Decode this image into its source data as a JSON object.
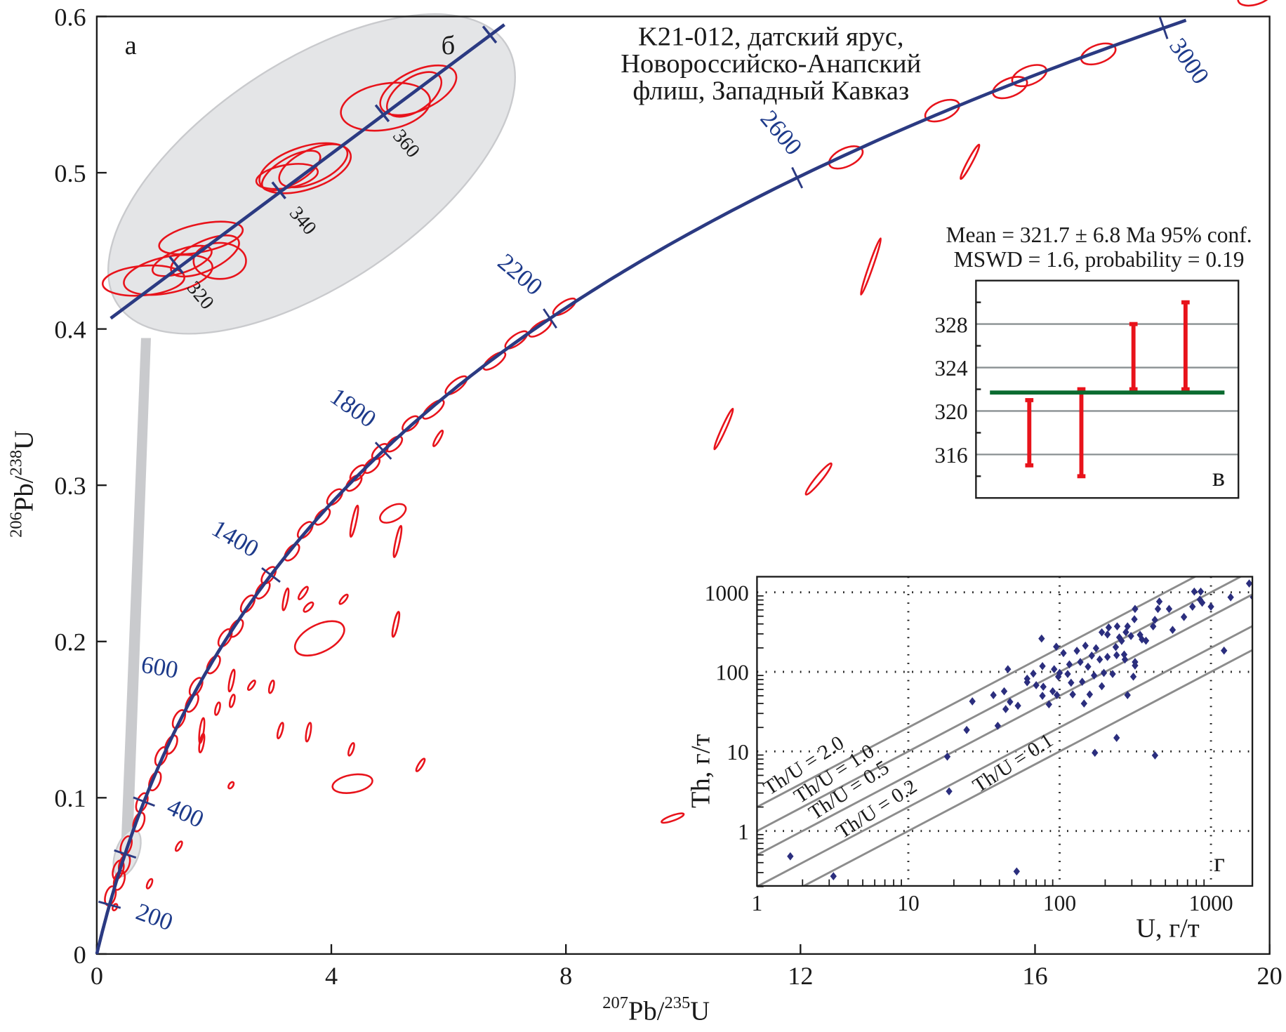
{
  "chart_data": [
    {
      "id": "a",
      "type": "scatter",
      "subtype": "concordia-diagram",
      "panel_label": "а",
      "title_lines": [
        "K21-012, датский ярус,",
        "Новороссийско-Анапский",
        "флиш, Западный Кавказ"
      ],
      "xlabel": {
        "sup1": "207",
        "base1": "Pb/",
        "sup2": "235",
        "base2": "U"
      },
      "ylabel": {
        "sup1": "206",
        "base1": "Pb/",
        "sup2": "238",
        "base2": "U"
      },
      "xlim": [
        0,
        20
      ],
      "ylim": [
        0,
        0.6
      ],
      "xticks": [
        "0",
        "4",
        "8",
        "12",
        "16",
        "20"
      ],
      "yticks": [
        "0",
        "0.1",
        "0.2",
        "0.3",
        "0.4",
        "0.5",
        "0.6"
      ],
      "concordia_age_labels_ma": [
        "200",
        "400",
        "600",
        "1400",
        "1800",
        "2200",
        "2600",
        "3000"
      ],
      "concordia_color": "#2b3a82",
      "ellipse_color": "#e8131b",
      "concordant_ellipse_ages_ma": [
        240,
        300,
        330,
        370,
        430,
        520,
        600,
        680,
        760,
        820,
        900,
        960,
        1020,
        1100,
        1180,
        1230,
        1300,
        1350,
        1400,
        1480,
        1540,
        1600,
        1650,
        1700,
        1730,
        1760,
        1790,
        1830,
        1880,
        1930,
        2000,
        2080,
        2130,
        2180,
        2230,
        2660,
        2780,
        2850,
        2870,
        2940,
        3080
      ],
      "discordant_ellipses": [
        {
          "x": 5.05,
          "y": 0.282,
          "ex": 0.22,
          "ey": 0.006,
          "rho": 0.5
        },
        {
          "x": 5.13,
          "y": 0.264,
          "ex": 0.06,
          "ey": 0.01,
          "rho": 0.95
        },
        {
          "x": 4.39,
          "y": 0.277,
          "ex": 0.06,
          "ey": 0.01,
          "rho": 0.95
        },
        {
          "x": 3.52,
          "y": 0.231,
          "ex": 0.08,
          "ey": 0.004,
          "rho": 0.8
        },
        {
          "x": 3.61,
          "y": 0.222,
          "ex": 0.08,
          "ey": 0.003,
          "rho": 0.7
        },
        {
          "x": 4.21,
          "y": 0.227,
          "ex": 0.07,
          "ey": 0.003,
          "rho": 0.8
        },
        {
          "x": 3.22,
          "y": 0.227,
          "ex": 0.04,
          "ey": 0.007,
          "rho": 0.95
        },
        {
          "x": 3.8,
          "y": 0.202,
          "ex": 0.42,
          "ey": 0.011,
          "rho": 0.5
        },
        {
          "x": 5.1,
          "y": 0.211,
          "ex": 0.05,
          "ey": 0.008,
          "rho": 0.95
        },
        {
          "x": 5.82,
          "y": 0.33,
          "ex": 0.08,
          "ey": 0.005,
          "rho": 0.9
        },
        {
          "x": 2.64,
          "y": 0.172,
          "ex": 0.06,
          "ey": 0.003,
          "rho": 0.8
        },
        {
          "x": 2.98,
          "y": 0.171,
          "ex": 0.03,
          "ey": 0.004,
          "rho": 0.9
        },
        {
          "x": 2.3,
          "y": 0.175,
          "ex": 0.04,
          "ey": 0.007,
          "rho": 0.95
        },
        {
          "x": 2.31,
          "y": 0.162,
          "ex": 0.03,
          "ey": 0.004,
          "rho": 0.9
        },
        {
          "x": 2.06,
          "y": 0.157,
          "ex": 0.03,
          "ey": 0.004,
          "rho": 0.9
        },
        {
          "x": 1.79,
          "y": 0.143,
          "ex": 0.03,
          "ey": 0.008,
          "rho": 0.95
        },
        {
          "x": 1.79,
          "y": 0.135,
          "ex": 0.03,
          "ey": 0.006,
          "rho": 0.95
        },
        {
          "x": 3.13,
          "y": 0.143,
          "ex": 0.04,
          "ey": 0.005,
          "rho": 0.9
        },
        {
          "x": 3.61,
          "y": 0.142,
          "ex": 0.03,
          "ey": 0.006,
          "rho": 0.95
        },
        {
          "x": 4.34,
          "y": 0.131,
          "ex": 0.04,
          "ey": 0.004,
          "rho": 0.9
        },
        {
          "x": 5.52,
          "y": 0.121,
          "ex": 0.07,
          "ey": 0.004,
          "rho": 0.9
        },
        {
          "x": 4.36,
          "y": 0.109,
          "ex": 0.34,
          "ey": 0.006,
          "rho": 0.3
        },
        {
          "x": 2.29,
          "y": 0.108,
          "ex": 0.04,
          "ey": 0.002,
          "rho": 0.7
        },
        {
          "x": 1.4,
          "y": 0.069,
          "ex": 0.05,
          "ey": 0.003,
          "rho": 0.85
        },
        {
          "x": 0.9,
          "y": 0.045,
          "ex": 0.04,
          "ey": 0.003,
          "rho": 0.85
        },
        {
          "x": 0.31,
          "y": 0.03,
          "ex": 0.03,
          "ey": 0.002,
          "rho": 0.8
        },
        {
          "x": 9.82,
          "y": 0.087,
          "ex": 0.19,
          "ey": 0.003,
          "rho": 0.8
        },
        {
          "x": 12.31,
          "y": 0.304,
          "ex": 0.22,
          "ey": 0.01,
          "rho": 0.95
        },
        {
          "x": 10.69,
          "y": 0.336,
          "ex": 0.16,
          "ey": 0.013,
          "rho": 0.97
        },
        {
          "x": 13.2,
          "y": 0.44,
          "ex": 0.17,
          "ey": 0.018,
          "rho": 0.98
        },
        {
          "x": 14.89,
          "y": 0.507,
          "ex": 0.16,
          "ey": 0.011,
          "rho": 0.96
        }
      ]
    },
    {
      "id": "b",
      "type": "scatter",
      "subtype": "concordia-enlargement",
      "panel_label": "б",
      "age_labels_ma": [
        "320",
        "340",
        "360"
      ]
    },
    {
      "id": "v",
      "type": "errorbar",
      "panel_label": "в",
      "annotation_lines": [
        "Mean = 321.7 ± 6.8 Ma 95% conf.",
        "MSWD = 1.6, probability = 0.19"
      ],
      "mean": 321.7,
      "ylim": [
        312,
        332
      ],
      "yticks": [
        "316",
        "320",
        "324",
        "328"
      ],
      "mean_color": "#0b6b30",
      "bar_color": "#e8131b",
      "bars": [
        {
          "low": 315,
          "high": 321
        },
        {
          "low": 314,
          "high": 322
        },
        {
          "low": 322,
          "high": 328
        },
        {
          "low": 322,
          "high": 330
        }
      ]
    },
    {
      "id": "g",
      "type": "scatter",
      "panel_label": "г",
      "xscale": "log",
      "yscale": "log",
      "xlim": [
        1,
        1870
      ],
      "ylim": [
        0.2,
        1560
      ],
      "xlabel": "U, г/т",
      "ylabel": "Th, г/т",
      "xticks": [
        "1",
        "10",
        "100",
        "1000"
      ],
      "yticks": [
        "1",
        "10",
        "100",
        "1000"
      ],
      "point_color": "#2b2e7e",
      "ratio_lines": [
        {
          "ratio": 2.0,
          "label": "Th/U = 2.0"
        },
        {
          "ratio": 1.0,
          "label": "Th/U = 1.0"
        },
        {
          "ratio": 0.5,
          "label": "Th/U = 0.5"
        },
        {
          "ratio": 0.2,
          "label": "Th/U = 0.2"
        },
        {
          "ratio": 0.1,
          "label": "Th/U = 0.1"
        }
      ],
      "points": [
        [
          1.66,
          0.48
        ],
        [
          3.2,
          0.27
        ],
        [
          52,
          0.31
        ],
        [
          18.1,
          8.6
        ],
        [
          18.6,
          3.15
        ],
        [
          24.3,
          18.6
        ],
        [
          26.5,
          42.6
        ],
        [
          39,
          21
        ],
        [
          36.5,
          51
        ],
        [
          43,
          57
        ],
        [
          44,
          34
        ],
        [
          47,
          42
        ],
        [
          53,
          37.5
        ],
        [
          45.5,
          108
        ],
        [
          61,
          82
        ],
        [
          61,
          74
        ],
        [
          67,
          95
        ],
        [
          70,
          68
        ],
        [
          76,
          262
        ],
        [
          77,
          118
        ],
        [
          78,
          65
        ],
        [
          77,
          50
        ],
        [
          85,
          39
        ],
        [
          90,
          57
        ],
        [
          95,
          207
        ],
        [
          92,
          108
        ],
        [
          96,
          51
        ],
        [
          98,
          87
        ],
        [
          100,
          97
        ],
        [
          106,
          172
        ],
        [
          113,
          94
        ],
        [
          116,
          124
        ],
        [
          119,
          73
        ],
        [
          122,
          52
        ],
        [
          130,
          184
        ],
        [
          137,
          133
        ],
        [
          141,
          75
        ],
        [
          145,
          40
        ],
        [
          148,
          213
        ],
        [
          154,
          116
        ],
        [
          158,
          52
        ],
        [
          163,
          160
        ],
        [
          169,
          90
        ],
        [
          174,
          198
        ],
        [
          184,
          143
        ],
        [
          190,
          314
        ],
        [
          196,
          97
        ],
        [
          190,
          66
        ],
        [
          207,
          295
        ],
        [
          211,
          361
        ],
        [
          207,
          154
        ],
        [
          224,
          94
        ],
        [
          235,
          205
        ],
        [
          238,
          162
        ],
        [
          240,
          373
        ],
        [
          248,
          271
        ],
        [
          257,
          245
        ],
        [
          267,
          165
        ],
        [
          270,
          143
        ],
        [
          281,
          51
        ],
        [
          274,
          315
        ],
        [
          281,
          373
        ],
        [
          296,
          282
        ],
        [
          307,
          87
        ],
        [
          315,
          133
        ],
        [
          315,
          120
        ],
        [
          315,
          618
        ],
        [
          312,
          458
        ],
        [
          340,
          292
        ],
        [
          350,
          256
        ],
        [
          372,
          246
        ],
        [
          238,
          14.8
        ],
        [
          171,
          9.6
        ],
        [
          427,
          8.9
        ],
        [
          415,
          373
        ],
        [
          426,
          450
        ],
        [
          446,
          618
        ],
        [
          456,
          765
        ],
        [
          529,
          618
        ],
        [
          558,
          337
        ],
        [
          663,
          489
        ],
        [
          755,
          660
        ],
        [
          776,
          1020
        ],
        [
          845,
          810
        ],
        [
          856,
          1020
        ],
        [
          875,
          740
        ],
        [
          1000,
          660
        ],
        [
          1220,
          185
        ],
        [
          1350,
          866
        ],
        [
          1790,
          1290
        ],
        [
          1900,
          866
        ]
      ]
    }
  ]
}
